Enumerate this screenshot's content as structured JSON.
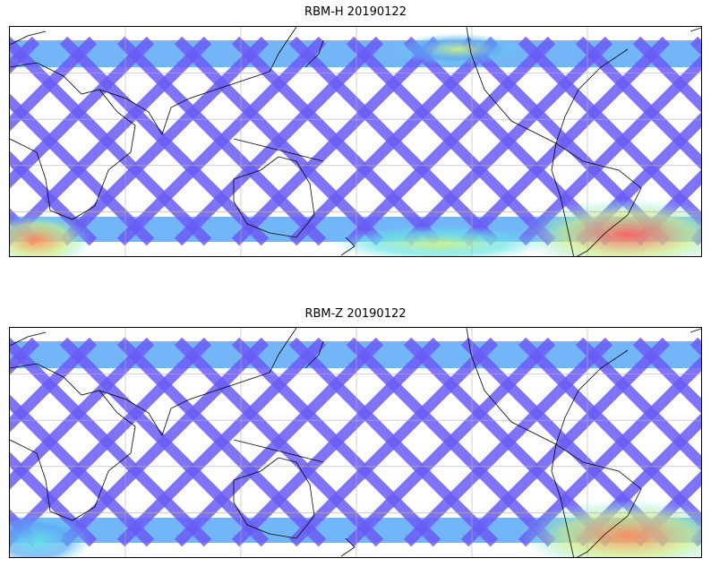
{
  "panels": [
    {
      "title": "RBM-H 20190122",
      "colormap": "jet",
      "hotspots": [
        {
          "region": "south-atlantic-anomaly",
          "level": 1.0
        },
        {
          "region": "southern-indian-ocean",
          "level": 0.8
        },
        {
          "region": "southern-pacific",
          "level": 0.55
        },
        {
          "region": "north-atlantic",
          "level": 0.5
        }
      ]
    },
    {
      "title": "RBM-Z 20190122",
      "colormap": "jet",
      "hotspots": [
        {
          "region": "south-atlantic-anomaly",
          "level": 0.8
        },
        {
          "region": "southern-indian-ocean",
          "level": 0.4
        }
      ]
    }
  ],
  "colors": {
    "low": "#6a5cf5",
    "lowmid": "#5aa9f6",
    "mid": "#67e3e6",
    "midhigh": "#c9f08a",
    "high": "#f5e55f",
    "veryhigh": "#ff8c5a",
    "max": "#ff6060",
    "coastline": "#000000",
    "gridline": "#b0b0b0"
  }
}
